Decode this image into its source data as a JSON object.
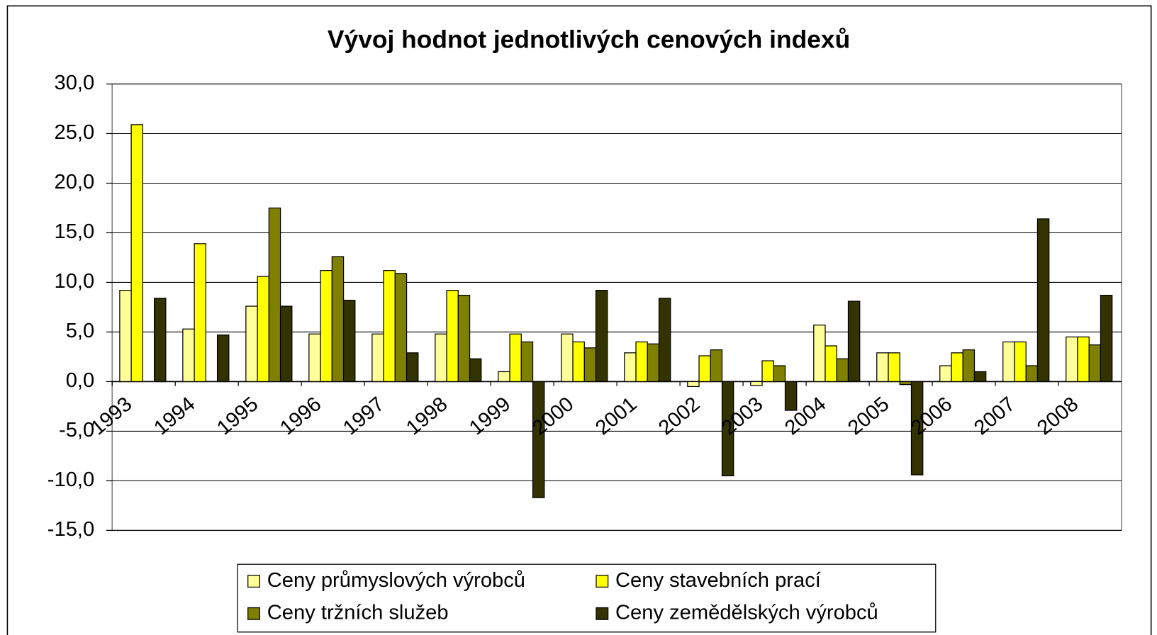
{
  "chart_data": {
    "type": "bar",
    "title": "Vývoj hodnot jednotlivých cenových indexů",
    "categories": [
      "1993",
      "1994",
      "1995",
      "1996",
      "1997",
      "1998",
      "1999",
      "2000",
      "2001",
      "2002",
      "2003",
      "2004",
      "2005",
      "2006",
      "2007",
      "2008"
    ],
    "series": [
      {
        "name": "Ceny průmyslových výrobců",
        "color": "#ffff99",
        "values": [
          9.2,
          5.3,
          7.6,
          4.8,
          4.8,
          4.8,
          1.0,
          4.8,
          2.9,
          -0.5,
          -0.4,
          5.7,
          2.9,
          1.6,
          4.0,
          4.5
        ]
      },
      {
        "name": "Ceny stavebních prací",
        "color": "#ffff00",
        "values": [
          25.9,
          13.9,
          10.6,
          11.2,
          11.2,
          9.2,
          4.8,
          4.0,
          4.0,
          2.6,
          2.1,
          3.6,
          2.9,
          2.9,
          4.0,
          4.5
        ]
      },
      {
        "name": "Ceny tržních služeb",
        "color": "#808000",
        "values": [
          null,
          null,
          17.5,
          12.6,
          10.9,
          8.7,
          4.0,
          3.4,
          3.8,
          3.2,
          1.6,
          2.3,
          -0.3,
          3.2,
          1.6,
          3.7
        ]
      },
      {
        "name": "Ceny zemědělských výrobců",
        "color": "#333300",
        "values": [
          8.4,
          4.7,
          7.6,
          8.2,
          2.9,
          2.3,
          -11.7,
          9.2,
          8.4,
          -9.5,
          -2.9,
          8.1,
          -9.4,
          1.0,
          16.4,
          8.7
        ]
      }
    ],
    "ylim": [
      -15,
      30
    ],
    "yticks": [
      {
        "value": -15,
        "label": "-15,0"
      },
      {
        "value": -10,
        "label": "-10,0"
      },
      {
        "value": -5,
        "label": "-5,0"
      },
      {
        "value": 0,
        "label": "0,0"
      },
      {
        "value": 5,
        "label": "5,0"
      },
      {
        "value": 10,
        "label": "10,0"
      },
      {
        "value": 15,
        "label": "15,0"
      },
      {
        "value": 20,
        "label": "20,0"
      },
      {
        "value": 25,
        "label": "25,0"
      },
      {
        "value": 30,
        "label": "30,0"
      }
    ],
    "grid": true,
    "legend": "bottom"
  }
}
